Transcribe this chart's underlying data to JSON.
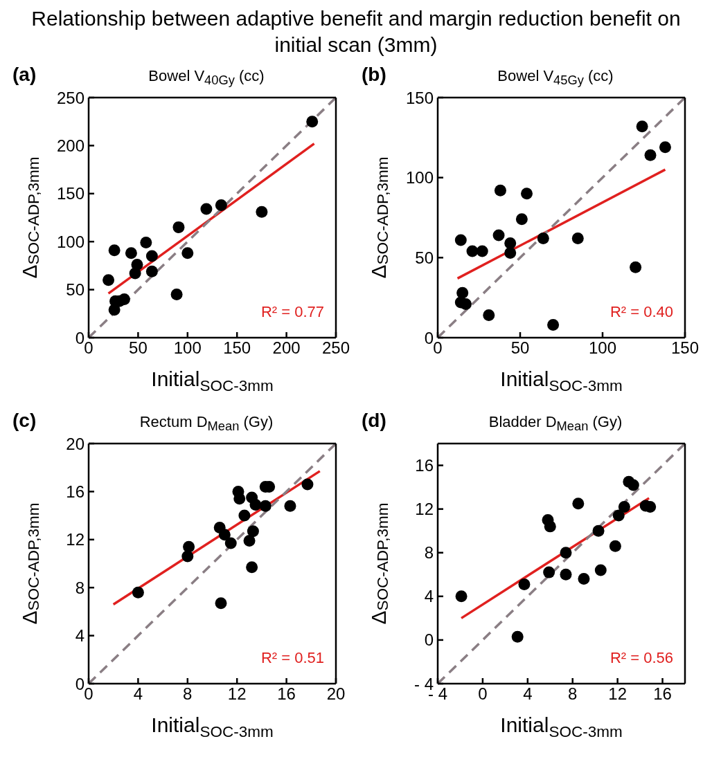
{
  "chart_data": [
    {
      "type": "scatter",
      "title": "Bowel V$_{40Gy}$ (cc)",
      "xlabel": "Initial$_{SOC-3mm}$",
      "ylabel": "Δ$_{SOC-ADP,3mm}$",
      "annotations": [
        "Relationship between adaptive benefit and margin reduction benefit on initial scan (3mm)",
        "(a)",
        "R² = 0.77"
      ],
      "xlim": [
        0,
        250
      ],
      "xticks": [
        0,
        50,
        100,
        150,
        200,
        250
      ],
      "ylim": [
        0,
        250
      ],
      "yticks": [
        0,
        50,
        100,
        150,
        200,
        250
      ],
      "grid": false,
      "legend": false,
      "marker": "circle",
      "series": [
        {
          "color": "#000000",
          "x": [
            226,
            175,
            134,
            119,
            100,
            91,
            89,
            64,
            64,
            58,
            49,
            47,
            43,
            36,
            27,
            26,
            26,
            31,
            20
          ],
          "values": [
            225,
            131,
            138,
            134,
            88,
            115,
            45,
            69,
            85,
            99,
            76,
            67,
            88,
            40,
            38,
            91,
            29,
            38,
            60
          ]
        },
        {
          "type": "line",
          "color": "#e0201f",
          "marker": "none",
          "x": [
            20,
            228
          ],
          "values": [
            46,
            202
          ]
        },
        {
          "type": "line",
          "color": "#8a7e84",
          "marker": "none",
          "line_style": "dashed",
          "x": [
            0,
            250
          ],
          "values": [
            0,
            250
          ]
        }
      ]
    },
    {
      "type": "scatter",
      "title": "Bowel V$_{45Gy}$ (cc)",
      "xlabel": "Initial$_{SOC-3mm}$",
      "ylabel": "Δ$_{SOC-ADP,3mm}$",
      "annotations": [
        "(b)",
        "R² = 0.40"
      ],
      "xlim": [
        0,
        150
      ],
      "xticks": [
        0,
        50,
        100,
        150
      ],
      "ylim": [
        0,
        150
      ],
      "yticks": [
        0,
        50,
        100,
        150
      ],
      "grid": false,
      "legend": false,
      "marker": "circle",
      "series": [
        {
          "color": "#000000",
          "x": [
            124,
            129,
            138,
            120,
            85,
            70,
            64,
            54,
            51,
            44,
            44,
            38,
            37,
            27,
            21,
            14,
            15,
            14,
            17,
            31
          ],
          "values": [
            132,
            114,
            119,
            44,
            62,
            8,
            62,
            90,
            74,
            59,
            53,
            92,
            64,
            54,
            54,
            61,
            28,
            22,
            21,
            14
          ]
        },
        {
          "type": "line",
          "color": "#e0201f",
          "marker": "none",
          "x": [
            12,
            138
          ],
          "values": [
            37,
            105
          ]
        },
        {
          "type": "line",
          "color": "#8a7e84",
          "marker": "none",
          "line_style": "dashed",
          "x": [
            0,
            150
          ],
          "values": [
            0,
            150
          ]
        }
      ]
    },
    {
      "type": "scatter",
      "title": "Rectum D$_{Mean}$ (Gy)",
      "xlabel": "Initial$_{SOC-3mm}$",
      "ylabel": "Δ$_{SOC-ADP,3mm}$",
      "annotations": [
        "(c)",
        "R² = 0.51"
      ],
      "xlim": [
        0,
        20
      ],
      "xticks": [
        0,
        4,
        8,
        12,
        16,
        20
      ],
      "ylim": [
        0,
        20
      ],
      "yticks": [
        0,
        4,
        8,
        12,
        16,
        20
      ],
      "grid": false,
      "legend": false,
      "marker": "circle",
      "series": [
        {
          "color": "#000000",
          "x": [
            4,
            8,
            8.1,
            10.6,
            10.7,
            11,
            11.5,
            12.1,
            12.2,
            12.6,
            13,
            13.2,
            13.2,
            13.3,
            13.5,
            14.3,
            14.6,
            14.3,
            16.3,
            17.7
          ],
          "values": [
            7.6,
            10.6,
            11.4,
            13,
            6.7,
            12.4,
            11.7,
            16,
            15.4,
            14,
            11.9,
            15.5,
            9.7,
            12.7,
            14.9,
            16.4,
            16.4,
            14.8,
            14.8,
            16.6
          ]
        },
        {
          "type": "line",
          "color": "#e0201f",
          "marker": "none",
          "x": [
            2,
            18.7
          ],
          "values": [
            6.6,
            17.7
          ]
        },
        {
          "type": "line",
          "color": "#8a7e84",
          "marker": "none",
          "line_style": "dashed",
          "x": [
            0,
            20
          ],
          "values": [
            0,
            20
          ]
        }
      ]
    },
    {
      "type": "scatter",
      "title": "Bladder D$_{Mean}$ (Gy)",
      "xlabel": "Initial$_{SOC-3mm}$",
      "ylabel": "Δ$_{SOC-ADP,3mm}$",
      "annotations": [
        "(d)",
        "R² = 0.56"
      ],
      "xlim": [
        -4,
        18
      ],
      "xticks": [
        {
          "value": -4,
          "label": "- 4"
        },
        0,
        4,
        8,
        12,
        16
      ],
      "ylim": [
        -4,
        18
      ],
      "yticks": [
        {
          "value": -4,
          "label": "- 4"
        },
        0,
        4,
        8,
        12,
        16
      ],
      "grid": false,
      "legend": false,
      "marker": "circle",
      "series": [
        {
          "color": "#000000",
          "x": [
            -1.9,
            3.1,
            3.7,
            5.8,
            6,
            5.9,
            7.4,
            7.4,
            8.5,
            9,
            10.3,
            10.5,
            11.8,
            12.1,
            12.6,
            13,
            13.4,
            14.5,
            14.9
          ],
          "values": [
            4,
            0.3,
            5.1,
            11,
            10.4,
            6.2,
            8,
            6,
            12.5,
            5.6,
            10,
            6.4,
            8.6,
            11.4,
            12.2,
            14.5,
            14.2,
            12.3,
            12.2
          ]
        },
        {
          "type": "line",
          "color": "#e0201f",
          "marker": "none",
          "x": [
            -1.9,
            14.8
          ],
          "values": [
            2,
            13
          ]
        },
        {
          "type": "line",
          "color": "#8a7e84",
          "marker": "none",
          "line_style": "dashed",
          "x": [
            -4,
            18
          ],
          "values": [
            -4,
            18
          ]
        }
      ]
    }
  ]
}
